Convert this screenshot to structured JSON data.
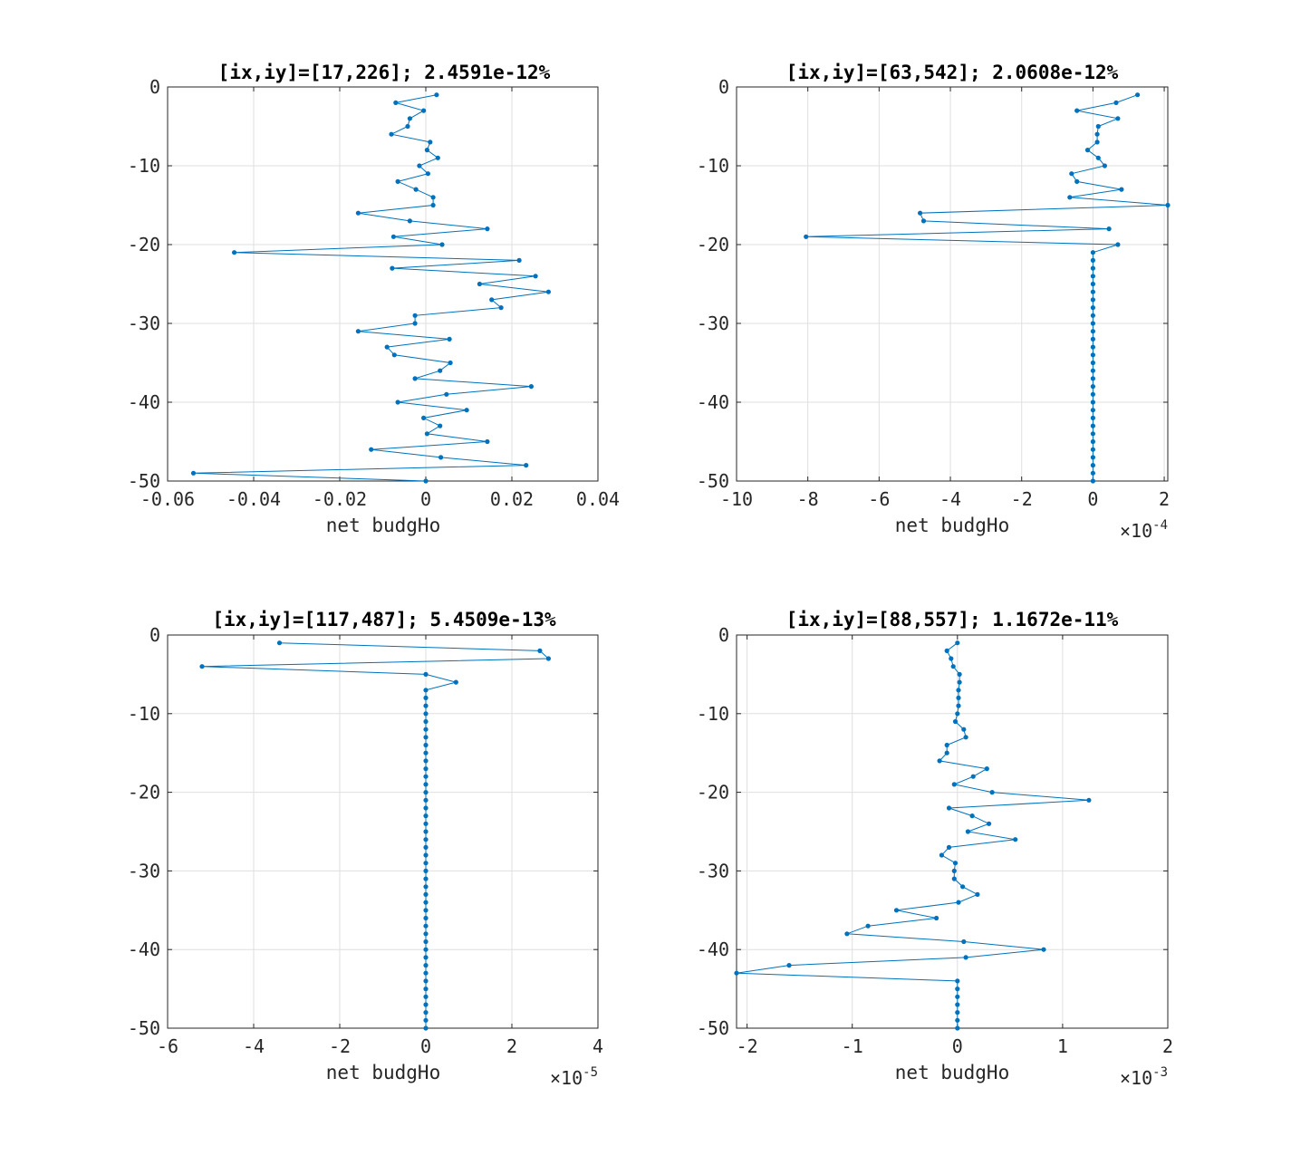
{
  "chart_data": [
    {
      "type": "line",
      "title": "[ix,iy]=[17,226]; 2.4591e-12%",
      "xlabel": "net budgHo",
      "x_exponent": "",
      "xlim": [
        -0.06,
        0.04
      ],
      "ylim": [
        -50,
        0
      ],
      "xticks": [
        -0.06,
        -0.04,
        -0.02,
        0,
        0.02,
        0.04
      ],
      "xtick_labels": [
        "-0.06",
        "-0.04",
        "-0.02",
        "0",
        "0.02",
        "0.04"
      ],
      "yticks": [
        0,
        -10,
        -20,
        -30,
        -40,
        -50
      ],
      "ytick_labels": [
        "0",
        "-10",
        "-20",
        "-30",
        "-40",
        "-50"
      ],
      "grid": true,
      "color": "#0072BD",
      "series": [
        {
          "x": [
            0.0025,
            -0.007,
            -0.0005,
            -0.0037,
            -0.0042,
            -0.008,
            0.001,
            0.0003,
            0.0028,
            -0.0015,
            0.0005,
            -0.0065,
            -0.0023,
            0.0017,
            0.0017,
            -0.0157,
            -0.0037,
            0.0143,
            -0.0075,
            0.0038,
            -0.0445,
            0.0217,
            -0.0078,
            0.0255,
            0.0125,
            0.0285,
            0.0153,
            0.0175,
            -0.0025,
            -0.0025,
            -0.0157,
            0.0055,
            -0.009,
            -0.0073,
            0.0057,
            0.0033,
            -0.0025,
            0.0245,
            0.0048,
            -0.0065,
            0.0095,
            -0.0005,
            0.0033,
            0.0003,
            0.0143,
            -0.0127,
            0.0035,
            0.0233,
            -0.054,
            0
          ],
          "y": [
            -1,
            -2,
            -3,
            -4,
            -5,
            -6,
            -7,
            -8,
            -9,
            -10,
            -11,
            -12,
            -13,
            -14,
            -15,
            -16,
            -17,
            -18,
            -19,
            -20,
            -21,
            -22,
            -23,
            -24,
            -25,
            -26,
            -27,
            -28,
            -29,
            -30,
            -31,
            -32,
            -33,
            -34,
            -35,
            -36,
            -37,
            -38,
            -39,
            -40,
            -41,
            -42,
            -43,
            -44,
            -45,
            -46,
            -47,
            -48,
            -49,
            -50
          ]
        }
      ]
    },
    {
      "type": "line",
      "title": "[ix,iy]=[63,542]; 2.0608e-12%",
      "xlabel": "net budgHo",
      "x_exponent": "-4",
      "xlim": [
        -10,
        2.1
      ],
      "ylim": [
        -50,
        0
      ],
      "xticks": [
        -10,
        -8,
        -6,
        -4,
        -2,
        0,
        2
      ],
      "xtick_labels": [
        "-10",
        "-8",
        "-6",
        "-4",
        "-2",
        "0",
        "2"
      ],
      "yticks": [
        0,
        -10,
        -20,
        -30,
        -40,
        -50
      ],
      "ytick_labels": [
        "0",
        "-10",
        "-20",
        "-30",
        "-40",
        "-50"
      ],
      "grid": true,
      "color": "#0072BD",
      "series": [
        {
          "x": [
            1.25,
            0.65,
            -0.45,
            0.7,
            0.15,
            0.12,
            0.12,
            -0.15,
            0.15,
            0.33,
            -0.6,
            -0.45,
            0.8,
            -0.65,
            2.1,
            -4.85,
            -4.75,
            0.45,
            -8.05,
            0.7,
            0,
            0,
            0,
            0,
            0,
            0,
            0,
            0,
            0,
            0,
            0,
            0,
            0,
            0,
            0,
            0,
            0,
            0,
            0,
            0,
            0,
            0,
            0,
            0,
            0,
            0,
            0,
            0,
            0,
            0
          ],
          "y": [
            -1,
            -2,
            -3,
            -4,
            -5,
            -6,
            -7,
            -8,
            -9,
            -10,
            -11,
            -12,
            -13,
            -14,
            -15,
            -16,
            -17,
            -18,
            -19,
            -20,
            -21,
            -22,
            -23,
            -24,
            -25,
            -26,
            -27,
            -28,
            -29,
            -30,
            -31,
            -32,
            -33,
            -34,
            -35,
            -36,
            -37,
            -38,
            -39,
            -40,
            -41,
            -42,
            -43,
            -44,
            -45,
            -46,
            -47,
            -48,
            -49,
            -50
          ]
        }
      ]
    },
    {
      "type": "line",
      "title": "[ix,iy]=[117,487]; 5.4509e-13%",
      "xlabel": "net budgHo",
      "x_exponent": "-5",
      "xlim": [
        -6,
        4
      ],
      "ylim": [
        -50,
        0
      ],
      "xticks": [
        -6,
        -4,
        -2,
        0,
        2,
        4
      ],
      "xtick_labels": [
        "-6",
        "-4",
        "-2",
        "0",
        "2",
        "4"
      ],
      "yticks": [
        0,
        -10,
        -20,
        -30,
        -40,
        -50
      ],
      "ytick_labels": [
        "0",
        "-10",
        "-20",
        "-30",
        "-40",
        "-50"
      ],
      "grid": true,
      "color": "#0072BD",
      "series": [
        {
          "x": [
            -3.4,
            2.65,
            2.85,
            -5.2,
            0,
            0.7,
            0,
            0,
            0,
            0,
            0,
            0,
            0,
            0,
            0,
            0,
            0,
            0,
            0,
            0,
            0,
            0,
            0,
            0,
            0,
            0,
            0,
            0,
            0,
            0,
            0,
            0,
            0,
            0,
            0,
            0,
            0,
            0,
            0,
            0,
            0,
            0,
            0,
            0,
            0,
            0,
            0,
            0,
            0,
            0
          ],
          "y": [
            -1,
            -2,
            -3,
            -4,
            -5,
            -6,
            -7,
            -8,
            -9,
            -10,
            -11,
            -12,
            -13,
            -14,
            -15,
            -16,
            -17,
            -18,
            -19,
            -20,
            -21,
            -22,
            -23,
            -24,
            -25,
            -26,
            -27,
            -28,
            -29,
            -30,
            -31,
            -32,
            -33,
            -34,
            -35,
            -36,
            -37,
            -38,
            -39,
            -40,
            -41,
            -42,
            -43,
            -44,
            -45,
            -46,
            -47,
            -48,
            -49,
            -50
          ]
        }
      ]
    },
    {
      "type": "line",
      "title": "[ix,iy]=[88,557]; 1.1672e-11%",
      "xlabel": "net budgHo",
      "x_exponent": "-3",
      "xlim": [
        -2.1,
        2
      ],
      "ylim": [
        -50,
        0
      ],
      "xticks": [
        -2,
        -1,
        0,
        1,
        2
      ],
      "xtick_labels": [
        "-2",
        "-1",
        "0",
        "1",
        "2"
      ],
      "yticks": [
        0,
        -10,
        -20,
        -30,
        -40,
        -50
      ],
      "ytick_labels": [
        "0",
        "-10",
        "-20",
        "-30",
        "-40",
        "-50"
      ],
      "grid": true,
      "color": "#0072BD",
      "series": [
        {
          "x": [
            0,
            -0.1,
            -0.06,
            -0.04,
            0.02,
            0.02,
            0.01,
            0.01,
            0.01,
            0,
            -0.02,
            0.06,
            0.08,
            -0.1,
            -0.1,
            -0.17,
            0.28,
            0.15,
            -0.03,
            0.33,
            1.25,
            -0.08,
            0.14,
            0.3,
            0.1,
            0.55,
            -0.08,
            -0.15,
            -0.02,
            -0.03,
            -0.03,
            0.05,
            0.19,
            0.01,
            -0.58,
            -0.2,
            -0.85,
            -1.05,
            0.06,
            0.82,
            0.08,
            -1.6,
            -2.1,
            0,
            0,
            0,
            0,
            0,
            0,
            0
          ],
          "y": [
            -1,
            -2,
            -3,
            -4,
            -5,
            -6,
            -7,
            -8,
            -9,
            -10,
            -11,
            -12,
            -13,
            -14,
            -15,
            -16,
            -17,
            -18,
            -19,
            -20,
            -21,
            -22,
            -23,
            -24,
            -25,
            -26,
            -27,
            -28,
            -29,
            -30,
            -31,
            -32,
            -33,
            -34,
            -35,
            -36,
            -37,
            -38,
            -39,
            -40,
            -41,
            -42,
            -43,
            -44,
            -45,
            -46,
            -47,
            -48,
            -49,
            -50
          ]
        }
      ]
    }
  ]
}
